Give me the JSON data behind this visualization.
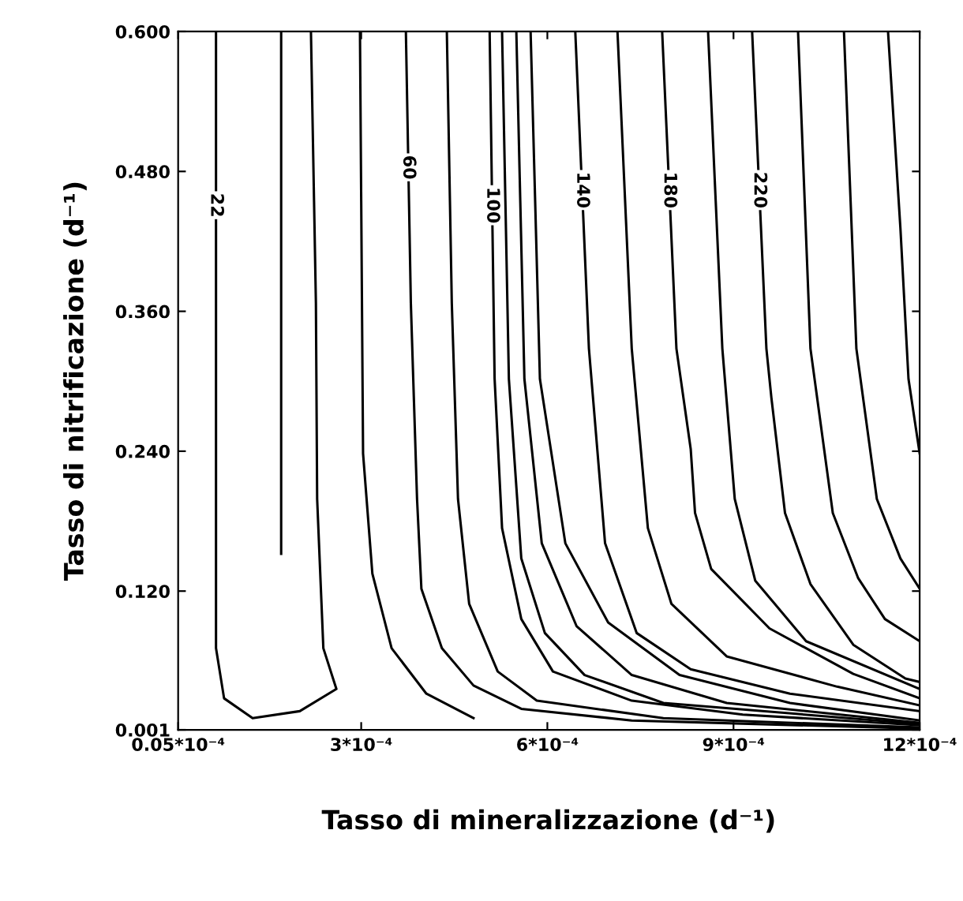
{
  "chart_data": {
    "type": "line",
    "xlabel": "Tasso di mineralizzazione (d⁻¹)",
    "ylabel": "Tasso di nitrificazione (d⁻¹)",
    "xlim": [
      5e-06,
      0.0012
    ],
    "ylim": [
      0.001,
      0.6
    ],
    "xticks": [
      {
        "value": 5e-06,
        "label": "0.05*10⁻⁴"
      },
      {
        "value": 0.0003,
        "label": "3*10⁻⁴"
      },
      {
        "value": 0.0006,
        "label": "6*10⁻⁴"
      },
      {
        "value": 0.0009,
        "label": "9*10⁻⁴"
      },
      {
        "value": 0.0012,
        "label": "12*10⁻⁴"
      }
    ],
    "yticks": [
      {
        "value": 0.001,
        "label": "0.001"
      },
      {
        "value": 0.12,
        "label": "0.120"
      },
      {
        "value": 0.24,
        "label": "0.240"
      },
      {
        "value": 0.36,
        "label": "0.360"
      },
      {
        "value": 0.48,
        "label": "0.480"
      },
      {
        "value": 0.6,
        "label": "0.600"
      }
    ],
    "grid": false,
    "legend": false,
    "line_style": "solid",
    "series": [
      {
        "name": "22",
        "color": "#000000",
        "x": [
          6.6e-05,
          6.6e-05,
          6.6e-05,
          7.9e-05,
          0.000125,
          0.000201,
          0.00026,
          0.000239,
          0.000229,
          0.000227,
          0.000219
        ],
        "values": [
          0.6,
          0.302,
          0.071,
          0.028,
          0.011,
          0.017,
          0.036,
          0.071,
          0.199,
          0.367,
          0.6
        ]
      },
      {
        "color": "#000000",
        "x": [
          0.000171,
          0.000171
        ],
        "values": [
          0.6,
          0.152
        ]
      },
      {
        "color": "#000000",
        "x": [
          0.000298,
          0.000303,
          0.000318,
          0.000349,
          0.000405,
          0.000481
        ],
        "values": [
          0.6,
          0.238,
          0.135,
          0.071,
          0.032,
          0.011
        ]
      },
      {
        "name": "60",
        "color": "#000000",
        "x": [
          0.000372,
          0.00038,
          0.00039,
          0.000397,
          0.00043,
          0.000481,
          0.000558,
          0.000736,
          0.0012
        ],
        "values": [
          0.6,
          0.367,
          0.199,
          0.122,
          0.071,
          0.039,
          0.019,
          0.009,
          0.002
        ]
      },
      {
        "color": "#000000",
        "x": [
          0.000438,
          0.000446,
          0.000456,
          0.000474,
          0.00052,
          0.000583,
          0.000787,
          0.0012
        ],
        "values": [
          0.6,
          0.367,
          0.199,
          0.109,
          0.051,
          0.026,
          0.011,
          0.003
        ]
      },
      {
        "name": "100",
        "color": "#000000",
        "x": [
          0.000507,
          0.000515,
          0.000527,
          0.000558,
          0.000609,
          0.000736,
          0.000915,
          0.0012
        ],
        "values": [
          0.6,
          0.302,
          0.174,
          0.096,
          0.051,
          0.026,
          0.014,
          0.005
        ]
      },
      {
        "color": "#000000",
        "x": [
          0.000527,
          0.000538,
          0.000558,
          0.000596,
          0.00066,
          0.000787,
          0.0012
        ],
        "values": [
          0.6,
          0.302,
          0.148,
          0.084,
          0.048,
          0.024,
          0.006
        ]
      },
      {
        "color": "#000000",
        "x": [
          0.00055,
          0.000563,
          0.000591,
          0.000647,
          0.000736,
          0.000889,
          0.0012
        ],
        "values": [
          0.6,
          0.302,
          0.161,
          0.09,
          0.048,
          0.024,
          0.007
        ]
      },
      {
        "color": "#000000",
        "x": [
          0.000573,
          0.000588,
          0.000629,
          0.000698,
          0.000813,
          0.000991,
          0.0012
        ],
        "values": [
          0.6,
          0.302,
          0.161,
          0.093,
          0.048,
          0.024,
          0.009
        ]
      },
      {
        "name": "140",
        "color": "#000000",
        "x": [
          0.000645,
          0.000667,
          0.000693,
          0.000744,
          0.000831,
          0.000991,
          0.0012
        ],
        "values": [
          0.6,
          0.328,
          0.161,
          0.084,
          0.053,
          0.032,
          0.017
        ]
      },
      {
        "color": "#000000",
        "x": [
          0.000713,
          0.000736,
          0.000762,
          0.0008,
          0.000889,
          0.001067,
          0.0012
        ],
        "values": [
          0.6,
          0.328,
          0.174,
          0.109,
          0.064,
          0.038,
          0.022
        ]
      },
      {
        "name": "180",
        "color": "#000000",
        "x": [
          0.000785,
          0.000808,
          0.000831,
          0.000838,
          0.000864,
          0.000958,
          0.001093,
          0.0012
        ],
        "values": [
          0.6,
          0.328,
          0.242,
          0.187,
          0.139,
          0.088,
          0.049,
          0.028
        ]
      },
      {
        "color": "#000000",
        "x": [
          0.000859,
          0.000882,
          0.000902,
          0.000935,
          0.001017,
          0.0012
        ],
        "values": [
          0.6,
          0.328,
          0.199,
          0.129,
          0.077,
          0.036
        ]
      },
      {
        "name": "220",
        "color": "#000000",
        "x": [
          0.00093,
          0.000953,
          0.000961,
          0.000983,
          0.001024,
          0.001093,
          0.001177,
          0.0012
        ],
        "values": [
          0.6,
          0.328,
          0.286,
          0.187,
          0.126,
          0.074,
          0.045,
          0.042
        ]
      },
      {
        "color": "#000000",
        "x": [
          0.001004,
          0.001024,
          0.00106,
          0.001101,
          0.001144,
          0.0012
        ],
        "values": [
          0.6,
          0.328,
          0.187,
          0.131,
          0.096,
          0.077
        ]
      },
      {
        "color": "#000000",
        "x": [
          0.001078,
          0.001098,
          0.001131,
          0.001169,
          0.0012
        ],
        "values": [
          0.6,
          0.328,
          0.199,
          0.148,
          0.122
        ]
      },
      {
        "color": "#000000",
        "x": [
          0.001149,
          0.001169,
          0.001182,
          0.0012
        ],
        "values": [
          0.6,
          0.431,
          0.302,
          0.238
        ]
      }
    ]
  }
}
